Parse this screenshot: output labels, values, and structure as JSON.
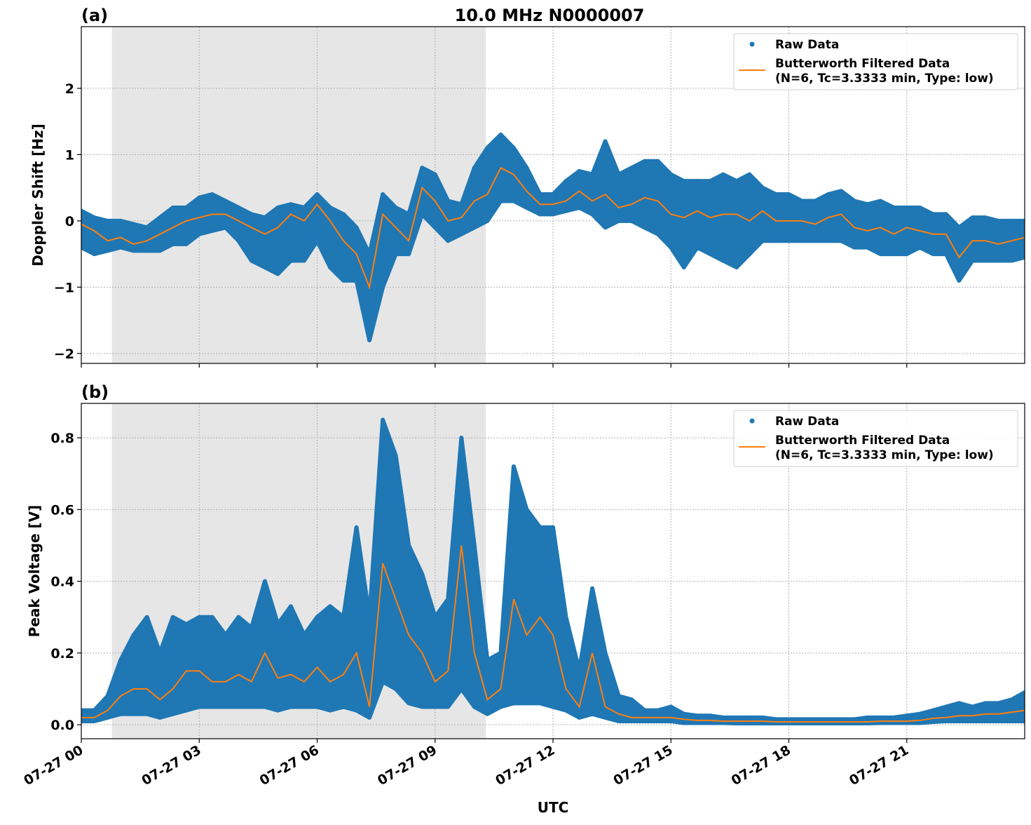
{
  "chart_data": [
    {
      "type": "scatter+line",
      "panel_label": "(a)",
      "title": "10.0 MHz N0000007",
      "xlabel": "",
      "ylabel": "Doppler Shift [Hz]",
      "xlim_hours": [
        0,
        24
      ],
      "ylim": [
        -2.15,
        2.93
      ],
      "yticks": [
        -2,
        -1,
        0,
        1,
        2
      ],
      "ytick_labels": [
        "−2",
        "−1",
        "0",
        "1",
        "2"
      ],
      "grid": true,
      "legend_placement": "top-right",
      "legend": [
        "Raw Data",
        "Butterworth Filtered Data",
        "(N=6, Tc=3.3333 min, Type: low)"
      ],
      "shaded_interval_hours": [
        0.78,
        10.29
      ],
      "series_colors": {
        "raw": "#1f77b4",
        "filtered": "#ff7f0e",
        "shade": "#e6e6e6"
      },
      "x_hours": [
        0,
        0.33,
        0.67,
        1,
        1.33,
        1.67,
        2,
        2.33,
        2.67,
        3,
        3.33,
        3.67,
        4,
        4.33,
        4.67,
        5,
        5.33,
        5.67,
        6,
        6.33,
        6.67,
        7,
        7.33,
        7.67,
        8,
        8.33,
        8.67,
        9,
        9.33,
        9.67,
        10,
        10.33,
        10.67,
        11,
        11.33,
        11.67,
        12,
        12.33,
        12.67,
        13,
        13.33,
        13.67,
        14,
        14.33,
        14.67,
        15,
        15.33,
        15.67,
        16,
        16.33,
        16.67,
        17,
        17.33,
        17.67,
        18,
        18.33,
        18.67,
        19,
        19.33,
        19.67,
        20,
        20.33,
        20.67,
        21,
        21.33,
        21.67,
        22,
        22.33,
        22.67,
        23,
        23.33,
        23.67,
        24
      ],
      "filtered": [
        -0.05,
        -0.15,
        -0.3,
        -0.25,
        -0.35,
        -0.3,
        -0.2,
        -0.1,
        0,
        0.05,
        0.1,
        0.1,
        0,
        -0.1,
        -0.2,
        -0.1,
        0.1,
        0,
        0.25,
        0,
        -0.3,
        -0.5,
        -1.0,
        0.1,
        -0.1,
        -0.3,
        0.5,
        0.3,
        0,
        0.05,
        0.3,
        0.4,
        0.8,
        0.7,
        0.45,
        0.25,
        0.25,
        0.3,
        0.45,
        0.3,
        0.4,
        0.2,
        0.25,
        0.35,
        0.3,
        0.1,
        0.05,
        0.15,
        0.05,
        0.1,
        0.1,
        0,
        0.15,
        0,
        0,
        0,
        -0.05,
        0.05,
        0.1,
        -0.1,
        -0.15,
        -0.1,
        -0.2,
        -0.1,
        -0.15,
        -0.2,
        -0.2,
        -0.55,
        -0.3,
        -0.3,
        -0.35,
        -0.3,
        -0.25
      ],
      "raw_low": [
        -0.4,
        -0.5,
        -0.45,
        -0.4,
        -0.45,
        -0.45,
        -0.45,
        -0.35,
        -0.35,
        -0.2,
        -0.15,
        -0.1,
        -0.3,
        -0.6,
        -0.7,
        -0.8,
        -0.6,
        -0.6,
        -0.3,
        -0.7,
        -0.9,
        -0.9,
        -1.8,
        -1.0,
        -0.5,
        -0.5,
        0.1,
        -0.1,
        -0.3,
        -0.2,
        -0.1,
        0,
        0.3,
        0.3,
        0.2,
        0.1,
        0.1,
        0.15,
        0.2,
        0.1,
        -0.1,
        0,
        0,
        -0.1,
        -0.2,
        -0.4,
        -0.7,
        -0.4,
        -0.5,
        -0.6,
        -0.7,
        -0.5,
        -0.3,
        -0.3,
        -0.3,
        -0.3,
        -0.3,
        -0.3,
        -0.3,
        -0.4,
        -0.4,
        -0.5,
        -0.5,
        -0.5,
        -0.4,
        -0.5,
        -0.5,
        -0.9,
        -0.6,
        -0.6,
        -0.6,
        -0.6,
        -0.55
      ],
      "raw_high": [
        0.15,
        0.05,
        0,
        0,
        -0.05,
        -0.1,
        0.05,
        0.2,
        0.2,
        0.35,
        0.4,
        0.3,
        0.2,
        0.1,
        0.05,
        0.2,
        0.25,
        0.2,
        0.4,
        0.2,
        0.1,
        -0.1,
        -0.5,
        0.4,
        0.2,
        0.1,
        0.8,
        0.7,
        0.3,
        0.25,
        0.8,
        1.1,
        1.3,
        1.1,
        0.8,
        0.4,
        0.4,
        0.6,
        0.75,
        0.7,
        1.2,
        0.7,
        0.8,
        0.9,
        0.9,
        0.7,
        0.6,
        0.6,
        0.6,
        0.7,
        0.6,
        0.7,
        0.5,
        0.4,
        0.4,
        0.3,
        0.3,
        0.4,
        0.45,
        0.3,
        0.25,
        0.3,
        0.2,
        0.2,
        0.2,
        0.1,
        0.1,
        -0.1,
        0.05,
        0.05,
        0,
        0,
        0
      ]
    },
    {
      "type": "scatter+line",
      "panel_label": "(b)",
      "xlabel": "UTC",
      "ylabel": "Peak Voltage [V]",
      "xlim_hours": [
        0,
        24
      ],
      "xtick_labels": [
        "07-27 00",
        "07-27 03",
        "07-27 06",
        "07-27 09",
        "07-27 12",
        "07-27 15",
        "07-27 18",
        "07-27 21"
      ],
      "ylim": [
        -0.039,
        0.896
      ],
      "yticks": [
        0,
        0.2,
        0.4,
        0.6,
        0.8
      ],
      "ytick_labels": [
        "0.0",
        "0.2",
        "0.4",
        "0.6",
        "0.8"
      ],
      "grid": true,
      "legend_placement": "top-right",
      "legend": [
        "Raw Data",
        "Butterworth Filtered Data",
        "(N=6, Tc=3.3333 min, Type: low)"
      ],
      "shaded_interval_hours": [
        0.78,
        10.29
      ],
      "series_colors": {
        "raw": "#1f77b4",
        "filtered": "#ff7f0e",
        "shade": "#e6e6e6"
      },
      "x_hours": [
        0,
        0.33,
        0.67,
        1,
        1.33,
        1.67,
        2,
        2.33,
        2.67,
        3,
        3.33,
        3.67,
        4,
        4.33,
        4.67,
        5,
        5.33,
        5.67,
        6,
        6.33,
        6.67,
        7,
        7.33,
        7.67,
        8,
        8.33,
        8.67,
        9,
        9.33,
        9.67,
        10,
        10.33,
        10.67,
        11,
        11.33,
        11.67,
        12,
        12.33,
        12.67,
        13,
        13.33,
        13.67,
        14,
        14.33,
        14.67,
        15,
        15.33,
        15.67,
        16,
        16.33,
        16.67,
        17,
        17.33,
        17.67,
        18,
        18.33,
        18.67,
        19,
        19.33,
        19.67,
        20,
        20.33,
        20.67,
        21,
        21.33,
        21.67,
        22,
        22.33,
        22.67,
        23,
        23.33,
        23.67,
        24
      ],
      "filtered": [
        0.02,
        0.02,
        0.04,
        0.08,
        0.1,
        0.1,
        0.07,
        0.1,
        0.15,
        0.15,
        0.12,
        0.12,
        0.14,
        0.12,
        0.2,
        0.13,
        0.14,
        0.12,
        0.16,
        0.12,
        0.14,
        0.2,
        0.05,
        0.45,
        0.35,
        0.25,
        0.2,
        0.12,
        0.15,
        0.5,
        0.2,
        0.07,
        0.1,
        0.35,
        0.25,
        0.3,
        0.25,
        0.1,
        0.05,
        0.2,
        0.05,
        0.03,
        0.02,
        0.02,
        0.02,
        0.02,
        0.015,
        0.012,
        0.012,
        0.01,
        0.01,
        0.01,
        0.01,
        0.008,
        0.008,
        0.008,
        0.008,
        0.008,
        0.008,
        0.008,
        0.008,
        0.01,
        0.01,
        0.01,
        0.012,
        0.018,
        0.02,
        0.025,
        0.025,
        0.03,
        0.03,
        0.035,
        0.04
      ],
      "raw_low": [
        0.01,
        0.01,
        0.02,
        0.03,
        0.03,
        0.03,
        0.02,
        0.03,
        0.04,
        0.05,
        0.05,
        0.05,
        0.05,
        0.05,
        0.05,
        0.04,
        0.05,
        0.05,
        0.05,
        0.04,
        0.05,
        0.04,
        0.02,
        0.12,
        0.1,
        0.06,
        0.05,
        0.05,
        0.05,
        0.1,
        0.05,
        0.03,
        0.05,
        0.06,
        0.06,
        0.06,
        0.05,
        0.04,
        0.02,
        0.03,
        0.02,
        0.01,
        0.01,
        0.01,
        0.01,
        0.01,
        0.005,
        0.005,
        0.005,
        0.005,
        0.004,
        0.004,
        0.004,
        0.004,
        0.004,
        0.004,
        0.004,
        0.004,
        0.004,
        0.004,
        0.004,
        0.005,
        0.005,
        0.005,
        0.005,
        0.008,
        0.01,
        0.01,
        0.01,
        0.01,
        0.01,
        0.01,
        0.01
      ],
      "raw_high": [
        0.04,
        0.04,
        0.08,
        0.18,
        0.25,
        0.3,
        0.2,
        0.3,
        0.28,
        0.3,
        0.3,
        0.25,
        0.3,
        0.27,
        0.4,
        0.28,
        0.33,
        0.25,
        0.3,
        0.33,
        0.3,
        0.55,
        0.3,
        0.85,
        0.75,
        0.5,
        0.42,
        0.3,
        0.35,
        0.8,
        0.5,
        0.18,
        0.2,
        0.72,
        0.6,
        0.55,
        0.55,
        0.3,
        0.15,
        0.38,
        0.2,
        0.08,
        0.07,
        0.04,
        0.04,
        0.05,
        0.03,
        0.025,
        0.025,
        0.02,
        0.02,
        0.02,
        0.02,
        0.015,
        0.015,
        0.015,
        0.015,
        0.015,
        0.015,
        0.015,
        0.02,
        0.02,
        0.02,
        0.025,
        0.03,
        0.04,
        0.05,
        0.06,
        0.05,
        0.06,
        0.06,
        0.07,
        0.09
      ]
    }
  ]
}
